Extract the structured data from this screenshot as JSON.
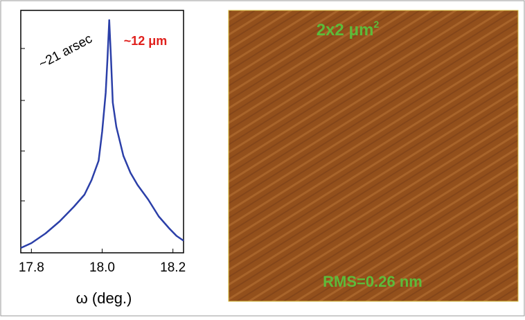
{
  "chart_data": {
    "type": "line",
    "annotations": [
      "~21 arsec",
      "~12 μm"
    ],
    "xlabel": "ω (deg.)",
    "x": [
      17.77,
      17.8,
      17.84,
      17.88,
      17.92,
      17.95,
      17.97,
      17.99,
      18.0,
      18.01,
      18.015,
      18.02,
      18.025,
      18.03,
      18.04,
      18.06,
      18.08,
      18.1,
      18.13,
      18.16,
      18.19,
      18.21,
      18.23
    ],
    "series": [
      {
        "color": "#2b3fa8",
        "values": [
          2,
          4,
          8,
          13,
          19,
          24,
          30,
          38,
          50,
          66,
          80,
          96,
          80,
          62,
          52,
          40,
          33,
          28,
          22,
          15,
          10,
          7,
          5
        ]
      }
    ],
    "xlim": [
      17.77,
      18.23
    ],
    "ylim": [
      0,
      100
    ],
    "xticks": [
      17.8,
      {
        "value": 18,
        "label": "18.0"
      },
      18.2
    ]
  },
  "afm": {
    "scale": "2x2 μm",
    "scale_power": "2",
    "rms": "RMS=0.26 nm"
  }
}
